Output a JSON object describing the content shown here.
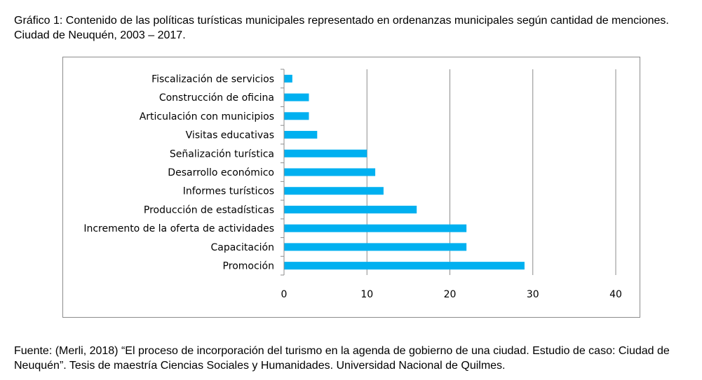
{
  "figure": {
    "caption": "Gráfico 1: Contenido de las políticas turísticas municipales representado en ordenanzas municipales según cantidad de menciones. Ciudad de Neuquén, 2003 – 2017.",
    "source": "Fuente: (Merli, 2018) “El proceso de incorporación del turismo en la agenda de gobierno de una ciudad. Estudio de caso: Ciudad de Neuquén”. Tesis de maestría Ciencias Sociales y Humanidades. Universidad Nacional de Quilmes."
  },
  "chart_data": {
    "type": "bar",
    "orientation": "horizontal",
    "title": "",
    "xlabel": "",
    "ylabel": "",
    "xlim": [
      0,
      40
    ],
    "xticks": [
      0,
      10,
      20,
      30,
      40
    ],
    "grid": "vertical",
    "bar_color": "#00b0f0",
    "categories": [
      "Fiscalización de servicios",
      "Construcción de oficina",
      "Articulación con municipios",
      "Visitas educativas",
      "Señalización turística",
      "Desarrollo económico",
      "Informes turísticos",
      "Producción de estadísticas",
      "Incremento de la oferta de actividades",
      "Capacitación",
      "Promoción"
    ],
    "values": [
      1,
      3,
      3,
      4,
      10,
      11,
      12,
      16,
      22,
      22,
      29
    ]
  }
}
